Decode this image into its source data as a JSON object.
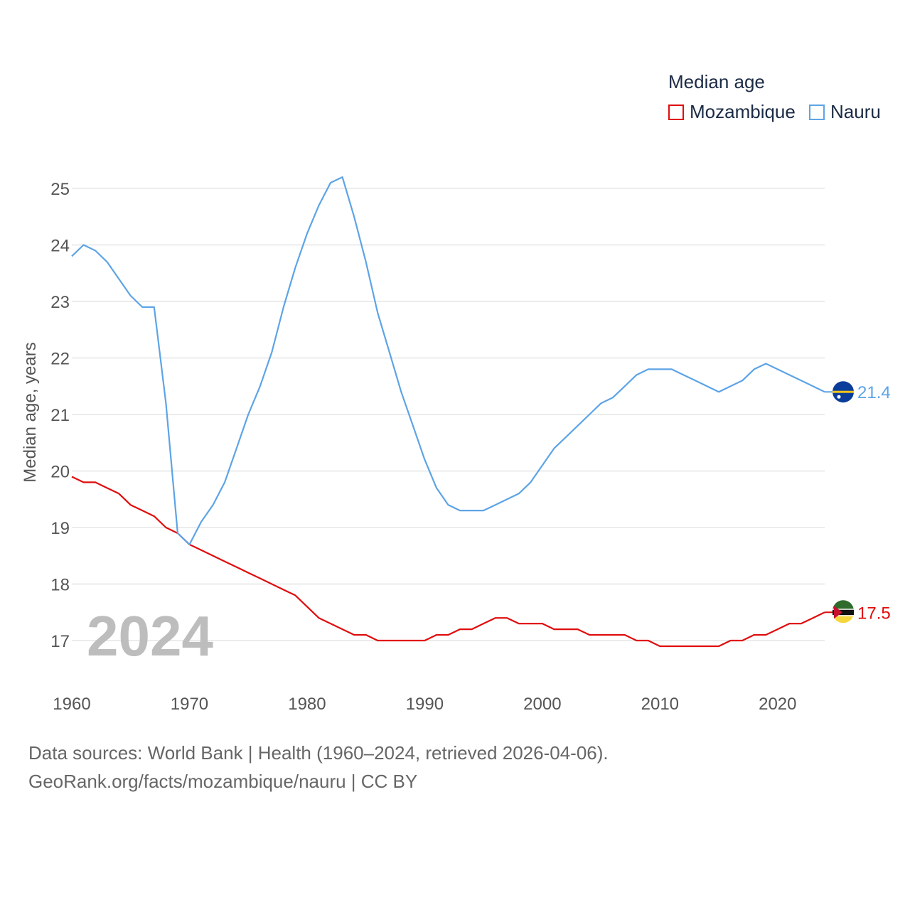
{
  "chart_data": {
    "type": "line",
    "legend": {
      "title": "Median age"
    },
    "ylabel": "Median age, years",
    "year_watermark": "2024",
    "xlim": [
      1960,
      2024
    ],
    "ylim": [
      16.3,
      25.5
    ],
    "x_ticks": [
      1960,
      1970,
      1980,
      1990,
      2000,
      2010,
      2020
    ],
    "x_tick_labels": [
      "1960",
      "1970",
      "1980",
      "1990",
      "2000",
      "2010",
      "2020"
    ],
    "y_ticks": [
      17,
      18,
      19,
      20,
      21,
      22,
      23,
      24,
      25
    ],
    "y_tick_labels": [
      "17",
      "18",
      "19",
      "20",
      "21",
      "22",
      "23",
      "24",
      "25"
    ],
    "series": [
      {
        "name": "Mozambique",
        "color": "#e00c0c",
        "end_label": "17.5",
        "x": [
          1960,
          1961,
          1962,
          1963,
          1964,
          1965,
          1966,
          1967,
          1968,
          1969,
          1970,
          1971,
          1972,
          1973,
          1974,
          1975,
          1976,
          1977,
          1978,
          1979,
          1980,
          1981,
          1982,
          1983,
          1984,
          1985,
          1986,
          1987,
          1988,
          1989,
          1990,
          1991,
          1992,
          1993,
          1994,
          1995,
          1996,
          1997,
          1998,
          1999,
          2000,
          2001,
          2002,
          2003,
          2004,
          2005,
          2006,
          2007,
          2008,
          2009,
          2010,
          2011,
          2012,
          2013,
          2014,
          2015,
          2016,
          2017,
          2018,
          2019,
          2020,
          2021,
          2022,
          2023,
          2024
        ],
        "values": [
          19.9,
          19.8,
          19.8,
          19.7,
          19.6,
          19.4,
          19.3,
          19.2,
          19.0,
          18.9,
          18.7,
          18.6,
          18.5,
          18.4,
          18.3,
          18.2,
          18.1,
          18.0,
          17.9,
          17.8,
          17.6,
          17.4,
          17.3,
          17.2,
          17.1,
          17.1,
          17.0,
          17.0,
          17.0,
          17.0,
          17.0,
          17.1,
          17.1,
          17.2,
          17.2,
          17.3,
          17.4,
          17.4,
          17.3,
          17.3,
          17.3,
          17.2,
          17.2,
          17.2,
          17.1,
          17.1,
          17.1,
          17.1,
          17.0,
          17.0,
          16.9,
          16.9,
          16.9,
          16.9,
          16.9,
          16.9,
          17.0,
          17.0,
          17.1,
          17.1,
          17.2,
          17.3,
          17.3,
          17.4,
          17.5
        ]
      },
      {
        "name": "Nauru",
        "color": "#5da4e6",
        "end_label": "21.4",
        "x": [
          1960,
          1961,
          1962,
          1963,
          1964,
          1965,
          1966,
          1967,
          1968,
          1969,
          1970,
          1971,
          1972,
          1973,
          1974,
          1975,
          1976,
          1977,
          1978,
          1979,
          1980,
          1981,
          1982,
          1983,
          1984,
          1985,
          1986,
          1987,
          1988,
          1989,
          1990,
          1991,
          1992,
          1993,
          1994,
          1995,
          1996,
          1997,
          1998,
          1999,
          2000,
          2001,
          2002,
          2003,
          2004,
          2005,
          2006,
          2007,
          2008,
          2009,
          2010,
          2011,
          2012,
          2013,
          2014,
          2015,
          2016,
          2017,
          2018,
          2019,
          2020,
          2021,
          2022,
          2023,
          2024
        ],
        "values": [
          23.8,
          24.0,
          23.9,
          23.7,
          23.4,
          23.1,
          22.9,
          22.9,
          21.2,
          18.9,
          18.7,
          19.1,
          19.4,
          19.8,
          20.4,
          21.0,
          21.5,
          22.1,
          22.9,
          23.6,
          24.2,
          24.7,
          25.1,
          25.2,
          24.5,
          23.7,
          22.8,
          22.1,
          21.4,
          20.8,
          20.2,
          19.7,
          19.4,
          19.3,
          19.3,
          19.3,
          19.4,
          19.5,
          19.6,
          19.8,
          20.1,
          20.4,
          20.6,
          20.8,
          21.0,
          21.2,
          21.3,
          21.5,
          21.7,
          21.8,
          21.8,
          21.8,
          21.7,
          21.6,
          21.5,
          21.4,
          21.5,
          21.6,
          21.8,
          21.9,
          21.8,
          21.7,
          21.6,
          21.5,
          21.4
        ]
      }
    ]
  },
  "footer": {
    "line1": "Data sources: World Bank | Health (1960–2024, retrieved 2026-04-06).",
    "line2": "GeoRank.org/facts/mozambique/nauru | CC BY"
  }
}
